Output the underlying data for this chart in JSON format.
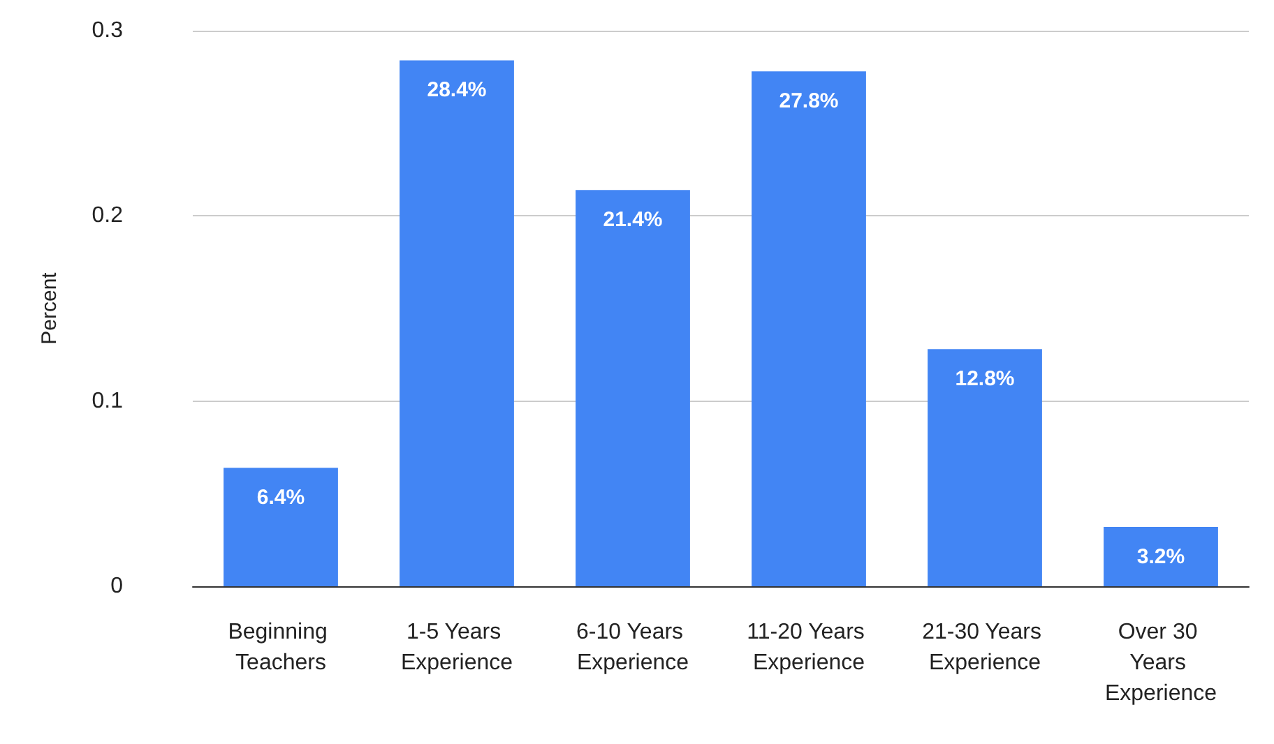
{
  "chart_data": {
    "type": "bar",
    "ylabel": "Percent",
    "categories": [
      "Beginning Teachers",
      "1-5 Years Experience",
      "6-10 Years Experience",
      "11-20 Years Experience",
      "21-30 Years Experience",
      "Over 30 Years Experience"
    ],
    "values": [
      0.064,
      0.284,
      0.214,
      0.278,
      0.128,
      0.032
    ],
    "value_labels": [
      "6.4%",
      "28.4%",
      "21.4%",
      "27.8%",
      "12.8%",
      "3.2%"
    ],
    "color": "#4285f4",
    "ylim": [
      0,
      0.3
    ],
    "yticks": [
      0,
      0.1,
      0.2,
      0.3
    ],
    "grid": "y"
  }
}
